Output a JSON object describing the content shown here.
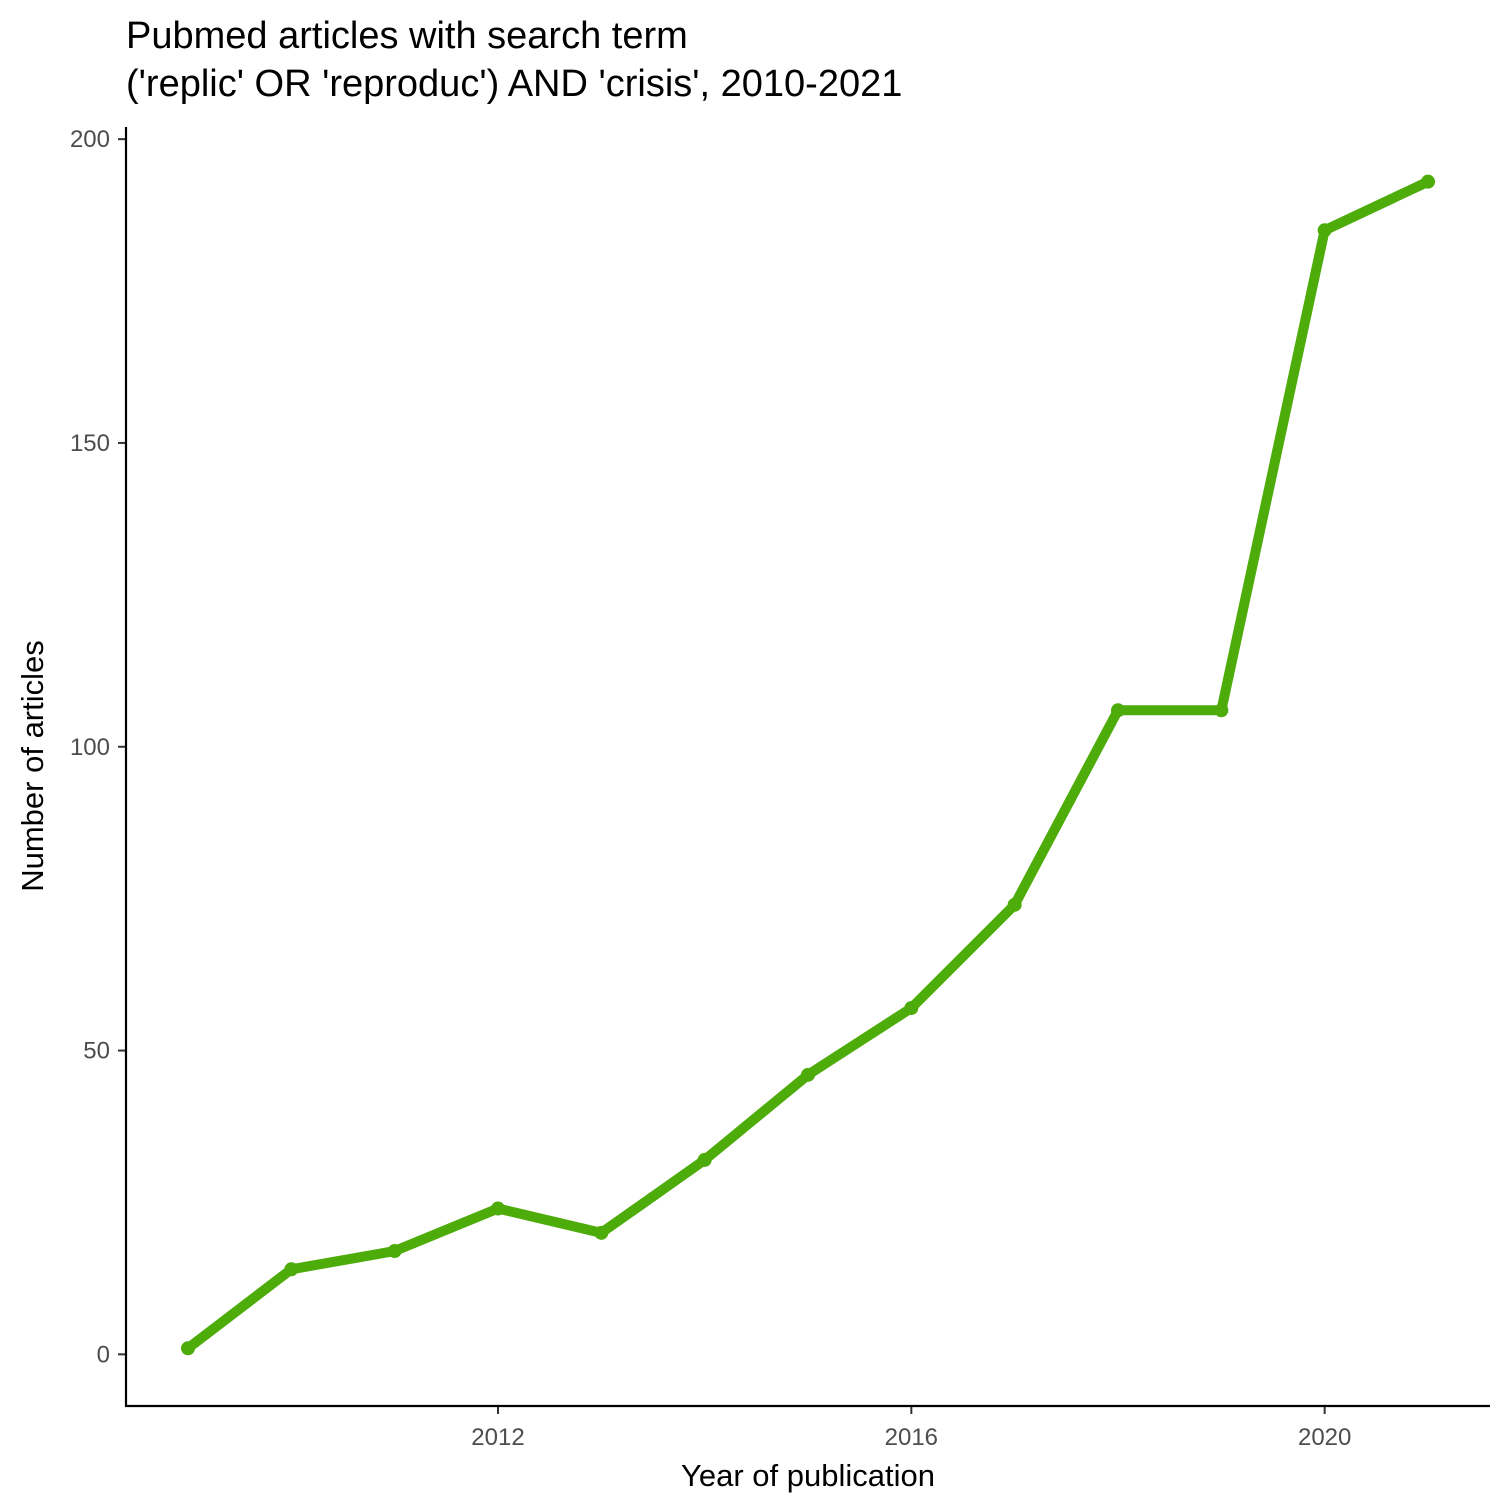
{
  "chart_data": {
    "type": "line",
    "title": "Pubmed articles with search term",
    "subtitle": "('replic' OR 'reproduc') AND 'crisis', 2010-2021",
    "xlabel": "Year of publication",
    "ylabel": "Number of articles",
    "x": [
      2009,
      2010,
      2011,
      2012,
      2013,
      2014,
      2015,
      2016,
      2017,
      2018,
      2019,
      2020,
      2021
    ],
    "values": [
      1,
      14,
      17,
      24,
      20,
      32,
      46,
      57,
      74,
      106,
      106,
      185,
      193
    ],
    "xlim": [
      2008.4,
      2021.6
    ],
    "ylim": [
      -8.5,
      202
    ],
    "x_ticks": [
      2012,
      2016,
      2020
    ],
    "y_ticks": [
      0,
      50,
      100,
      150,
      200
    ],
    "grid": false,
    "legend": "none",
    "colors": {
      "line": "#4dac0a",
      "axis": "#000000",
      "tick_text": "#4d4d4d"
    }
  }
}
